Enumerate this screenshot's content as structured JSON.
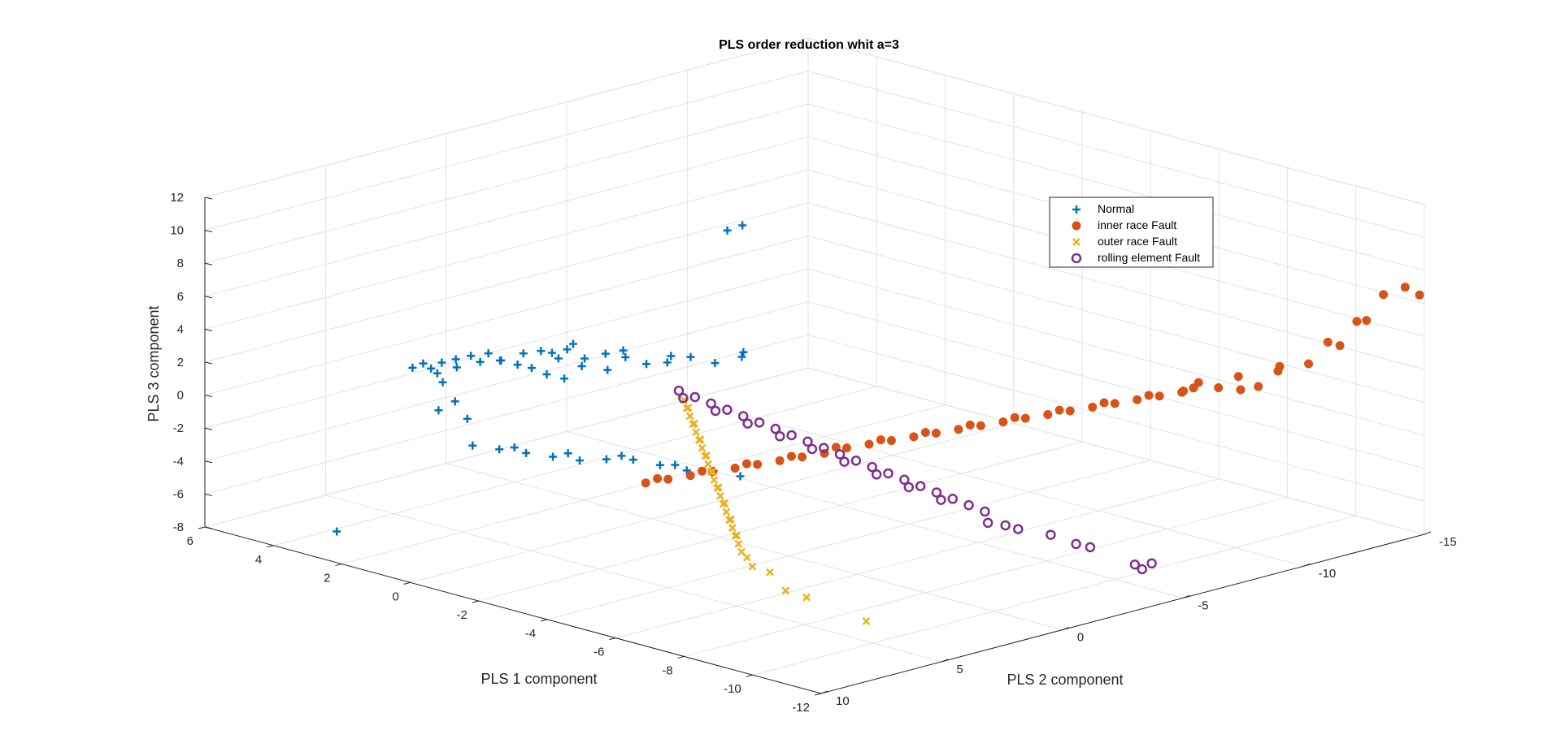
{
  "chart_data": {
    "type": "scatter",
    "projection": "3d",
    "title": "PLS order reduction whit a=3",
    "xlabel": "PLS 1 component",
    "ylabel": "PLS 2 component",
    "zlabel": "PLS 3 component",
    "xlim": [
      -12,
      6
    ],
    "ylim": [
      -15,
      10
    ],
    "zlim": [
      -8,
      12
    ],
    "xticks": [
      "6",
      "4",
      "2",
      "0",
      "-2",
      "-4",
      "-6",
      "-8",
      "-10",
      "-12"
    ],
    "yticks": [
      "10",
      "5",
      "0",
      "-5",
      "-10",
      "-15"
    ],
    "zticks": [
      "-8",
      "-6",
      "-4",
      "-2",
      "0",
      "2",
      "4",
      "6",
      "8",
      "10",
      "12"
    ],
    "grid": true,
    "legend_position": "top-right",
    "series": [
      {
        "name": "Normal",
        "marker": "plus",
        "color": "#0072BD",
        "points": [
          [
            3.5,
            4.5,
            1.2
          ],
          [
            3.1,
            4.3,
            1.4
          ],
          [
            2.9,
            4.0,
            1.6
          ],
          [
            2.6,
            3.8,
            1.9
          ],
          [
            2.3,
            3.5,
            2.1
          ],
          [
            2.1,
            3.3,
            1.7
          ],
          [
            1.8,
            3.0,
            1.5
          ],
          [
            1.6,
            2.7,
            1.3
          ],
          [
            1.3,
            2.5,
            1.0
          ],
          [
            1.0,
            2.2,
            0.8
          ],
          [
            3.3,
            4.2,
            0.6
          ],
          [
            3.0,
            4.4,
            0.3
          ],
          [
            2.5,
            4.6,
            -0.5
          ],
          [
            2.0,
            4.8,
            -1.2
          ],
          [
            2.7,
            5.0,
            -1.0
          ],
          [
            1.5,
            2.0,
            2.0
          ],
          [
            1.2,
            1.8,
            2.3
          ],
          [
            0.9,
            1.5,
            1.8
          ],
          [
            0.5,
            1.2,
            2.2
          ],
          [
            0.2,
            0.8,
            2.0
          ],
          [
            -0.2,
            0.5,
            1.7
          ],
          [
            -0.6,
            0.2,
            1.9
          ],
          [
            -1.0,
            -0.2,
            2.3
          ],
          [
            -1.5,
            -0.5,
            2.1
          ],
          [
            -2.0,
            -0.9,
            2.6
          ],
          [
            0.6,
            2.4,
            3.2
          ],
          [
            -0.3,
            1.6,
            3.0
          ],
          [
            -1.2,
            0.9,
            2.9
          ],
          [
            -2.4,
            -0.4,
            3.3
          ],
          [
            3.6,
            4.8,
            1.0
          ],
          [
            3.2,
            4.6,
            1.1
          ],
          [
            2.8,
            4.1,
            1.2
          ],
          [
            2.4,
            3.7,
            1.6
          ],
          [
            2.0,
            3.4,
            1.8
          ],
          [
            1.7,
            2.9,
            2.2
          ],
          [
            1.4,
            2.6,
            2.4
          ],
          [
            1.1,
            2.3,
            2.0
          ],
          [
            0.7,
            1.9,
            1.6
          ],
          [
            0.3,
            1.4,
            1.4
          ],
          [
            1.0,
            6.0,
            -1.8
          ],
          [
            0.5,
            5.6,
            -1.9
          ],
          [
            0.0,
            5.2,
            -2.0
          ],
          [
            -0.5,
            4.8,
            -2.1
          ],
          [
            -1.0,
            4.4,
            -2.2
          ],
          [
            -1.5,
            4.0,
            -2.0
          ],
          [
            -2.0,
            3.6,
            -1.9
          ],
          [
            -2.5,
            3.2,
            -2.1
          ],
          [
            -3.0,
            2.8,
            -2.3
          ],
          [
            -3.5,
            2.4,
            -2.2
          ],
          [
            -4.0,
            2.0,
            -2.4
          ],
          [
            0.2,
            5.4,
            -1.7
          ],
          [
            -0.8,
            4.6,
            -1.8
          ],
          [
            -1.8,
            3.8,
            -1.7
          ],
          [
            -2.8,
            3.0,
            -2.0
          ],
          [
            -2.0,
            -0.3,
            10.5
          ],
          [
            -2.3,
            -0.5,
            10.9
          ],
          [
            2.5,
            9.5,
            -6.5
          ]
        ]
      },
      {
        "name": "inner race Fault",
        "marker": "circle-filled",
        "color": "#D95319",
        "points": [
          [
            -3.0,
            4.5,
            -2.4
          ],
          [
            -3.3,
            4.0,
            -2.2
          ],
          [
            -3.6,
            3.5,
            -2.0
          ],
          [
            -3.9,
            3.0,
            -1.8
          ],
          [
            -4.2,
            2.5,
            -1.6
          ],
          [
            -4.5,
            2.0,
            -1.4
          ],
          [
            -4.8,
            1.5,
            -1.2
          ],
          [
            -5.1,
            1.0,
            -1.0
          ],
          [
            -5.4,
            0.5,
            -0.8
          ],
          [
            -5.7,
            0.0,
            -0.5
          ],
          [
            -6.0,
            -0.5,
            -0.3
          ],
          [
            -6.3,
            -1.0,
            -0.1
          ],
          [
            -6.6,
            -1.5,
            0.1
          ],
          [
            -6.9,
            -2.0,
            0.3
          ],
          [
            -7.2,
            -2.5,
            0.5
          ],
          [
            -7.5,
            -3.0,
            0.7
          ],
          [
            -7.8,
            -3.5,
            0.9
          ],
          [
            -8.1,
            -4.0,
            1.1
          ],
          [
            -8.4,
            -4.5,
            1.3
          ],
          [
            -8.7,
            -5.0,
            1.5
          ],
          [
            -9.0,
            -5.5,
            1.7
          ],
          [
            -9.3,
            -6.0,
            1.9
          ],
          [
            -9.6,
            -6.5,
            2.1
          ],
          [
            -9.9,
            -7.0,
            2.3
          ],
          [
            -10.2,
            -7.5,
            2.5
          ],
          [
            -3.2,
            4.3,
            -2.1
          ],
          [
            -3.8,
            3.3,
            -1.7
          ],
          [
            -4.4,
            2.3,
            -1.3
          ],
          [
            -5.0,
            1.3,
            -0.9
          ],
          [
            -5.6,
            0.3,
            -0.4
          ],
          [
            -6.2,
            -0.7,
            0.0
          ],
          [
            -6.8,
            -1.7,
            0.4
          ],
          [
            -7.4,
            -2.7,
            0.8
          ],
          [
            -8.0,
            -3.7,
            1.2
          ],
          [
            -8.6,
            -4.7,
            1.6
          ],
          [
            -9.2,
            -5.7,
            2.0
          ],
          [
            -9.8,
            -6.7,
            2.4
          ],
          [
            -10.4,
            -7.7,
            2.8
          ],
          [
            -10.6,
            -7.0,
            3.0
          ],
          [
            -10.9,
            -7.2,
            3.6
          ],
          [
            -11.2,
            -7.6,
            3.3
          ],
          [
            -11.5,
            -8.0,
            4.0
          ],
          [
            -11.8,
            -8.4,
            3.4
          ],
          [
            -11.0,
            -8.8,
            2.6
          ],
          [
            -12.0,
            -9.0,
            4.5
          ],
          [
            -11.6,
            -9.5,
            3.8
          ],
          [
            -12.0,
            -10.2,
            4.2
          ],
          [
            -12.0,
            -11.0,
            5.2
          ],
          [
            -12.0,
            -11.5,
            4.8
          ],
          [
            -12.0,
            -12.2,
            6.0
          ],
          [
            -12.0,
            -12.6,
            5.9
          ],
          [
            -12.0,
            -13.3,
            7.2
          ],
          [
            -12.0,
            -14.2,
            7.3
          ],
          [
            -12.0,
            -14.8,
            6.6
          ]
        ]
      },
      {
        "name": "outer race Fault",
        "marker": "x",
        "color": "#EDB120",
        "points": [
          [
            -2.0,
            1.5,
            0.9
          ],
          [
            -2.3,
            1.8,
            0.7
          ],
          [
            -2.6,
            2.1,
            0.5
          ],
          [
            -2.9,
            2.4,
            0.3
          ],
          [
            -3.2,
            2.7,
            0.1
          ],
          [
            -3.5,
            3.0,
            -0.1
          ],
          [
            -3.8,
            3.3,
            -0.3
          ],
          [
            -4.1,
            3.6,
            -0.5
          ],
          [
            -4.4,
            3.9,
            -0.7
          ],
          [
            -4.7,
            4.2,
            -0.9
          ],
          [
            -5.0,
            4.5,
            -1.1
          ],
          [
            -5.3,
            4.8,
            -1.3
          ],
          [
            -5.6,
            5.1,
            -1.5
          ],
          [
            -5.9,
            5.4,
            -1.7
          ],
          [
            -6.2,
            5.7,
            -1.9
          ],
          [
            -6.5,
            6.0,
            -2.1
          ],
          [
            -6.8,
            6.3,
            -2.3
          ],
          [
            -7.1,
            6.6,
            -2.5
          ],
          [
            -7.4,
            6.9,
            -2.7
          ],
          [
            -7.7,
            7.2,
            -2.9
          ],
          [
            -2.2,
            1.6,
            0.6
          ],
          [
            -2.8,
            2.2,
            0.2
          ],
          [
            -3.4,
            2.8,
            -0.2
          ],
          [
            -4.0,
            3.4,
            -0.6
          ],
          [
            -4.6,
            4.0,
            -1.0
          ],
          [
            -5.2,
            4.6,
            -1.4
          ],
          [
            -5.8,
            5.2,
            -1.8
          ],
          [
            -6.4,
            5.8,
            -2.2
          ],
          [
            -7.0,
            6.4,
            -2.6
          ],
          [
            -8.0,
            7.4,
            -3.0
          ],
          [
            -8.3,
            7.6,
            -3.3
          ],
          [
            -8.6,
            7.3,
            -3.6
          ],
          [
            -9.2,
            7.5,
            -4.3
          ],
          [
            -9.6,
            7.2,
            -4.6
          ],
          [
            -10.5,
            6.0,
            -6.0
          ]
        ]
      },
      {
        "name": "rolling element Fault",
        "marker": "circle-open",
        "color": "#7E2F8E",
        "points": [
          [
            -1.5,
            1.0,
            1.0
          ],
          [
            -1.9,
            0.9,
            0.8
          ],
          [
            -2.3,
            0.8,
            0.6
          ],
          [
            -2.7,
            0.7,
            0.4
          ],
          [
            -3.1,
            0.6,
            0.2
          ],
          [
            -3.5,
            0.5,
            0.0
          ],
          [
            -3.9,
            0.4,
            -0.2
          ],
          [
            -4.3,
            0.3,
            -0.4
          ],
          [
            -4.7,
            0.2,
            -0.6
          ],
          [
            -5.1,
            0.1,
            -0.8
          ],
          [
            -5.5,
            0.0,
            -1.0
          ],
          [
            -5.9,
            -0.1,
            -1.2
          ],
          [
            -6.3,
            -0.2,
            -1.4
          ],
          [
            -6.7,
            -0.3,
            -1.6
          ],
          [
            -7.1,
            -0.4,
            -1.8
          ],
          [
            -7.5,
            -0.5,
            -2.0
          ],
          [
            -7.9,
            -0.6,
            -2.2
          ],
          [
            -8.3,
            -0.7,
            -2.4
          ],
          [
            -8.7,
            -0.8,
            -2.6
          ],
          [
            -9.1,
            -0.9,
            -2.8
          ],
          [
            -1.7,
            1.1,
            0.7
          ],
          [
            -2.5,
            0.9,
            0.3
          ],
          [
            -3.3,
            0.7,
            -0.1
          ],
          [
            -4.1,
            0.5,
            -0.5
          ],
          [
            -4.9,
            0.3,
            -0.9
          ],
          [
            -5.7,
            0.1,
            -1.3
          ],
          [
            -6.5,
            -0.1,
            -1.7
          ],
          [
            -7.3,
            -0.3,
            -2.1
          ],
          [
            -8.1,
            -0.5,
            -2.5
          ],
          [
            -9.4,
            -0.6,
            -3.2
          ],
          [
            -9.7,
            -0.9,
            -3.3
          ],
          [
            -10.0,
            -1.0,
            -3.4
          ],
          [
            -10.6,
            -1.5,
            -3.6
          ],
          [
            -11.2,
            -1.7,
            -3.9
          ],
          [
            -11.4,
            -2.0,
            -4.1
          ],
          [
            -12.0,
            -3.0,
            -5.2
          ],
          [
            -12.0,
            -3.3,
            -5.6
          ],
          [
            -12.0,
            -3.7,
            -5.4
          ]
        ]
      }
    ]
  }
}
